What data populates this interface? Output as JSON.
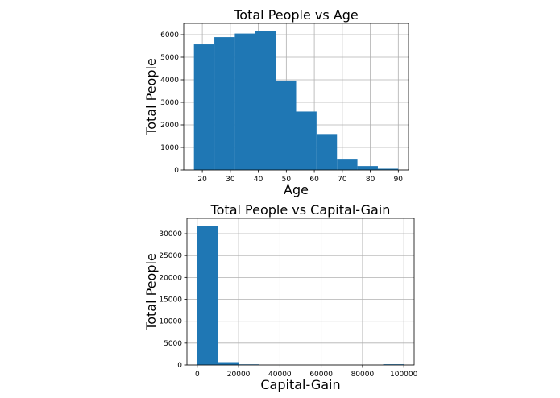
{
  "colors": {
    "bar": "#1f77b4",
    "grid": "#b0b0b0",
    "axis": "#000000"
  },
  "chart_data": [
    {
      "type": "bar",
      "title": "Total People vs Age",
      "xlabel": "Age",
      "ylabel": "Total People",
      "grid": true,
      "xlim": [
        13.35,
        93.65
      ],
      "ylim": [
        0,
        6500
      ],
      "xticks": [
        20,
        30,
        40,
        50,
        60,
        70,
        80,
        90
      ],
      "yticks": [
        0,
        1000,
        2000,
        3000,
        4000,
        5000,
        6000
      ],
      "bins": [
        {
          "x0": 17.0,
          "x1": 24.3,
          "value": 5570
        },
        {
          "x0": 24.3,
          "x1": 31.6,
          "value": 5890
        },
        {
          "x0": 31.6,
          "x1": 38.9,
          "value": 6050
        },
        {
          "x0": 38.9,
          "x1": 46.2,
          "value": 6163
        },
        {
          "x0": 46.2,
          "x1": 53.5,
          "value": 3967
        },
        {
          "x0": 53.5,
          "x1": 60.8,
          "value": 2591
        },
        {
          "x0": 60.8,
          "x1": 68.1,
          "value": 1595
        },
        {
          "x0": 68.1,
          "x1": 75.4,
          "value": 496
        },
        {
          "x0": 75.4,
          "x1": 82.7,
          "value": 174
        },
        {
          "x0": 82.7,
          "x1": 90.0,
          "value": 55
        }
      ]
    },
    {
      "type": "bar",
      "title": "Total People vs Capital-Gain",
      "xlabel": "Capital-Gain",
      "ylabel": "Total People",
      "grid": true,
      "xlim": [
        -4999.95,
        104998.95
      ],
      "ylim": [
        0,
        33500
      ],
      "xticks": [
        0,
        20000,
        40000,
        60000,
        80000,
        100000
      ],
      "yticks": [
        0,
        5000,
        10000,
        15000,
        20000,
        25000,
        30000
      ],
      "bins": [
        {
          "x0": 0,
          "x1": 9999.9,
          "value": 31790
        },
        {
          "x0": 9999.9,
          "x1": 19999.8,
          "value": 640
        },
        {
          "x0": 19999.8,
          "x1": 29999.7,
          "value": 140
        },
        {
          "x0": 29999.7,
          "x1": 39999.6,
          "value": 10
        },
        {
          "x0": 39999.6,
          "x1": 49999.5,
          "value": 8
        },
        {
          "x0": 49999.5,
          "x1": 59999.4,
          "value": 0
        },
        {
          "x0": 59999.4,
          "x1": 69999.3,
          "value": 0
        },
        {
          "x0": 69999.3,
          "x1": 79999.2,
          "value": 0
        },
        {
          "x0": 79999.2,
          "x1": 89999.1,
          "value": 0
        },
        {
          "x0": 89999.1,
          "x1": 99999.0,
          "value": 159
        }
      ]
    }
  ]
}
